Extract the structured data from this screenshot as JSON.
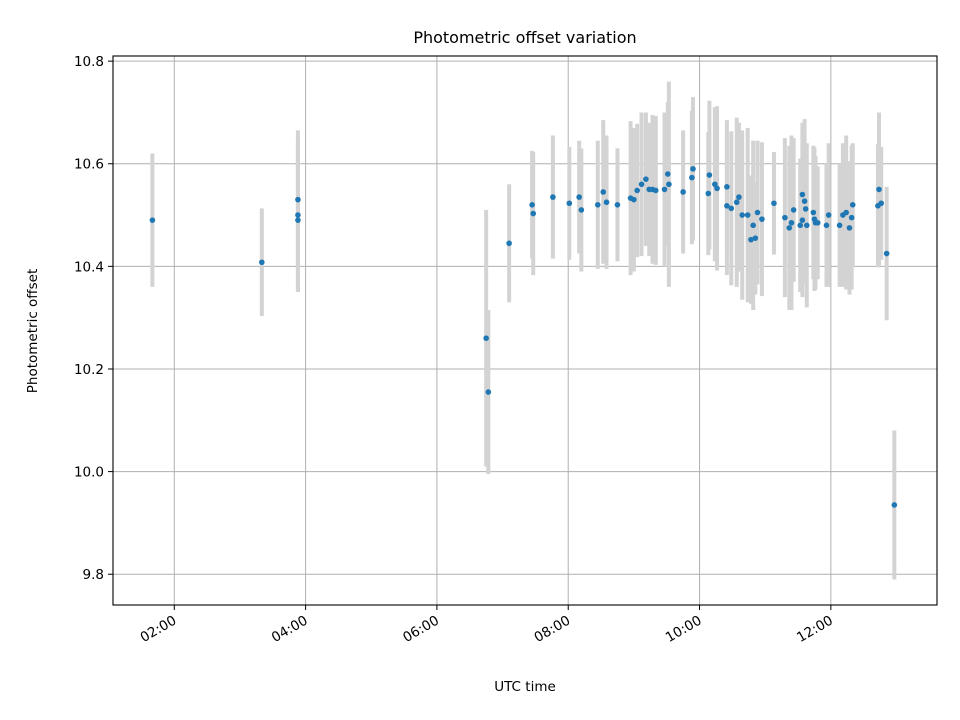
{
  "chart_data": {
    "type": "scatter",
    "title": "Photometric offset variation",
    "xlabel": "UTC time",
    "ylabel": "Photometric offset",
    "xlim": [
      "01:04",
      "13:37"
    ],
    "ylim": [
      9.74,
      10.81
    ],
    "x_ticks": [
      "02:00",
      "04:00",
      "06:00",
      "08:00",
      "10:00",
      "12:00"
    ],
    "y_ticks": [
      "9.8",
      "10.0",
      "10.2",
      "10.4",
      "10.6",
      "10.8"
    ],
    "grid": true,
    "colors": {
      "points": "#1f77b4",
      "errorbars": "#d3d3d3"
    },
    "points": [
      {
        "x": "01:40",
        "y": 10.49,
        "err": 0.13
      },
      {
        "x": "03:20",
        "y": 10.408,
        "err": 0.105
      },
      {
        "x": "03:53",
        "y": 10.49,
        "err": 0.14
      },
      {
        "x": "03:53",
        "y": 10.5,
        "err": 0.15
      },
      {
        "x": "03:53",
        "y": 10.53,
        "err": 0.135
      },
      {
        "x": "06:45",
        "y": 10.26,
        "err": 0.25
      },
      {
        "x": "06:47",
        "y": 10.155,
        "err": 0.16
      },
      {
        "x": "07:06",
        "y": 10.445,
        "err": 0.115
      },
      {
        "x": "07:27",
        "y": 10.52,
        "err": 0.105
      },
      {
        "x": "07:28",
        "y": 10.503,
        "err": 0.12
      },
      {
        "x": "07:46",
        "y": 10.535,
        "err": 0.12
      },
      {
        "x": "08:01",
        "y": 10.523,
        "err": 0.11
      },
      {
        "x": "08:10",
        "y": 10.535,
        "err": 0.11
      },
      {
        "x": "08:12",
        "y": 10.51,
        "err": 0.12
      },
      {
        "x": "08:27",
        "y": 10.52,
        "err": 0.125
      },
      {
        "x": "08:32",
        "y": 10.545,
        "err": 0.14
      },
      {
        "x": "08:35",
        "y": 10.525,
        "err": 0.13
      },
      {
        "x": "08:45",
        "y": 10.52,
        "err": 0.11
      },
      {
        "x": "08:57",
        "y": 10.533,
        "err": 0.15
      },
      {
        "x": "09:00",
        "y": 10.53,
        "err": 0.14
      },
      {
        "x": "09:03",
        "y": 10.548,
        "err": 0.13
      },
      {
        "x": "09:07",
        "y": 10.56,
        "err": 0.14
      },
      {
        "x": "09:11",
        "y": 10.57,
        "err": 0.13
      },
      {
        "x": "09:14",
        "y": 10.55,
        "err": 0.13
      },
      {
        "x": "09:17",
        "y": 10.55,
        "err": 0.145
      },
      {
        "x": "09:20",
        "y": 10.548,
        "err": 0.145
      },
      {
        "x": "09:28",
        "y": 10.55,
        "err": 0.15
      },
      {
        "x": "09:31",
        "y": 10.58,
        "err": 0.14
      },
      {
        "x": "09:32",
        "y": 10.56,
        "err": 0.2
      },
      {
        "x": "09:45",
        "y": 10.545,
        "err": 0.12
      },
      {
        "x": "09:53",
        "y": 10.573,
        "err": 0.13
      },
      {
        "x": "09:54",
        "y": 10.59,
        "err": 0.14
      },
      {
        "x": "10:08",
        "y": 10.542,
        "err": 0.12
      },
      {
        "x": "10:09",
        "y": 10.578,
        "err": 0.145
      },
      {
        "x": "10:14",
        "y": 10.56,
        "err": 0.15
      },
      {
        "x": "10:16",
        "y": 10.552,
        "err": 0.16
      },
      {
        "x": "10:25",
        "y": 10.555,
        "err": 0.13
      },
      {
        "x": "10:25",
        "y": 10.518,
        "err": 0.135
      },
      {
        "x": "10:29",
        "y": 10.513,
        "err": 0.15
      },
      {
        "x": "10:34",
        "y": 10.525,
        "err": 0.165
      },
      {
        "x": "10:36",
        "y": 10.535,
        "err": 0.145
      },
      {
        "x": "10:39",
        "y": 10.5,
        "err": 0.165
      },
      {
        "x": "10:44",
        "y": 10.5,
        "err": 0.17
      },
      {
        "x": "10:47",
        "y": 10.452,
        "err": 0.125
      },
      {
        "x": "10:49",
        "y": 10.48,
        "err": 0.165
      },
      {
        "x": "10:51",
        "y": 10.455,
        "err": 0.11
      },
      {
        "x": "10:53",
        "y": 10.505,
        "err": 0.14
      },
      {
        "x": "10:57",
        "y": 10.492,
        "err": 0.15
      },
      {
        "x": "11:08",
        "y": 10.523,
        "err": 0.1
      },
      {
        "x": "11:18",
        "y": 10.495,
        "err": 0.155
      },
      {
        "x": "11:22",
        "y": 10.475,
        "err": 0.16
      },
      {
        "x": "11:24",
        "y": 10.485,
        "err": 0.17
      },
      {
        "x": "11:26",
        "y": 10.51,
        "err": 0.14
      },
      {
        "x": "11:32",
        "y": 10.48,
        "err": 0.13
      },
      {
        "x": "11:34",
        "y": 10.49,
        "err": 0.15
      },
      {
        "x": "11:34",
        "y": 10.54,
        "err": 0.14
      },
      {
        "x": "11:36",
        "y": 10.527,
        "err": 0.16
      },
      {
        "x": "11:37",
        "y": 10.512,
        "err": 0.12
      },
      {
        "x": "11:38",
        "y": 10.48,
        "err": 0.16
      },
      {
        "x": "11:44",
        "y": 10.505,
        "err": 0.13
      },
      {
        "x": "11:45",
        "y": 10.492,
        "err": 0.14
      },
      {
        "x": "11:46",
        "y": 10.485,
        "err": 0.13
      },
      {
        "x": "11:48",
        "y": 10.485,
        "err": 0.11
      },
      {
        "x": "11:56",
        "y": 10.48,
        "err": 0.12
      },
      {
        "x": "11:58",
        "y": 10.5,
        "err": 0.14
      },
      {
        "x": "12:08",
        "y": 10.48,
        "err": 0.12
      },
      {
        "x": "12:11",
        "y": 10.5,
        "err": 0.14
      },
      {
        "x": "12:14",
        "y": 10.505,
        "err": 0.15
      },
      {
        "x": "12:17",
        "y": 10.475,
        "err": 0.13
      },
      {
        "x": "12:19",
        "y": 10.495,
        "err": 0.14
      },
      {
        "x": "12:20",
        "y": 10.52,
        "err": 0.12
      },
      {
        "x": "12:43",
        "y": 10.518,
        "err": 0.12
      },
      {
        "x": "12:44",
        "y": 10.55,
        "err": 0.15
      },
      {
        "x": "12:46",
        "y": 10.523,
        "err": 0.11
      },
      {
        "x": "12:51",
        "y": 10.425,
        "err": 0.13
      },
      {
        "x": "12:58",
        "y": 9.935,
        "err": 0.145
      }
    ]
  }
}
